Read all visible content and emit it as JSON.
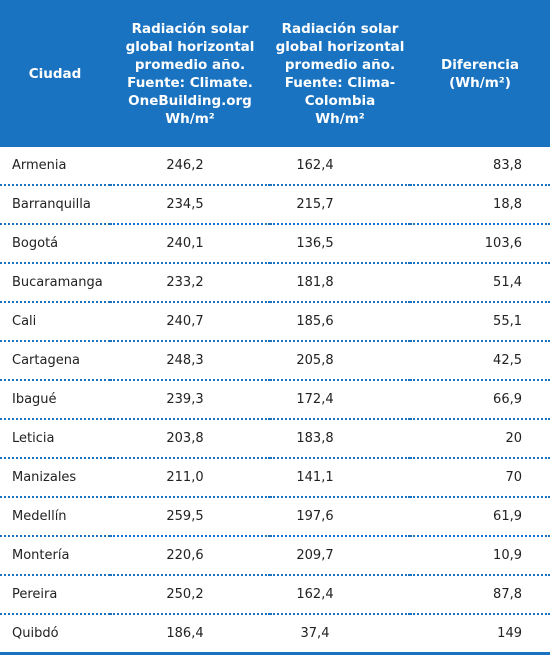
{
  "table": {
    "header": [
      [
        "Ciudad"
      ],
      [
        "Radiación solar",
        "global horizontal",
        "promedio año.",
        "Fuente: Climate.",
        "OneBuilding.org",
        "Wh/m²"
      ],
      [
        "Radiación solar",
        "global horizontal",
        "promedio año.",
        "Fuente: Clima-",
        "Colombia",
        "Wh/m²"
      ],
      [
        "Diferencia",
        "(Wh/m²)"
      ]
    ],
    "rows": [
      [
        "Armenia",
        "246,2",
        "162,4",
        "83,8"
      ],
      [
        "Barranquilla",
        "234,5",
        "215,7",
        "18,8"
      ],
      [
        "Bogotá",
        "240,1",
        "136,5",
        "103,6"
      ],
      [
        "Bucaramanga",
        "233,2",
        "181,8",
        "51,4"
      ],
      [
        "Cali",
        "240,7",
        "185,6",
        "55,1"
      ],
      [
        "Cartagena",
        "248,3",
        "205,8",
        "42,5"
      ],
      [
        "Ibagué",
        "239,3",
        "172,4",
        "66,9"
      ],
      [
        "Leticia",
        "203,8",
        "183,8",
        "20"
      ],
      [
        "Manizales",
        "211,0",
        "141,1",
        "70"
      ],
      [
        "Medellín",
        "259,5",
        "197,6",
        "61,9"
      ],
      [
        "Montería",
        "220,6",
        "209,7",
        "10,9"
      ],
      [
        "Pereira",
        "250,2",
        "162,4",
        "87,8"
      ],
      [
        "Quibdó",
        "186,4",
        "37,4",
        "149"
      ]
    ]
  }
}
